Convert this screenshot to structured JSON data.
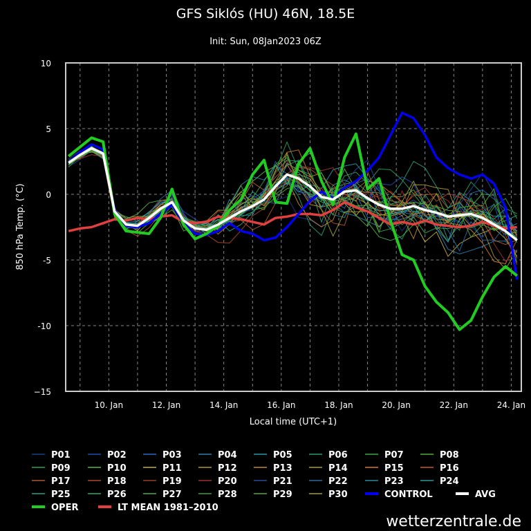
{
  "chart_data": {
    "type": "line",
    "title": "GFS Siklós (HU) 46N, 18.5E",
    "subtitle": "Init: Sun, 08Jan2023 06Z",
    "xlabel": "Local time (UTC+1)",
    "ylabel": "850 hPa Temp. (°C)",
    "credit": "wetterzentrale.de",
    "xlim": [
      8.5,
      24.35
    ],
    "ylim": [
      -15,
      10
    ],
    "grid": true,
    "x_ticks": [
      {
        "x": 10,
        "label": "10. Jan"
      },
      {
        "x": 12,
        "label": "12. Jan"
      },
      {
        "x": 14,
        "label": "14. Jan"
      },
      {
        "x": 16,
        "label": "16. Jan"
      },
      {
        "x": 18,
        "label": "18. Jan"
      },
      {
        "x": 20,
        "label": "20. Jan"
      },
      {
        "x": 22,
        "label": "22. Jan"
      },
      {
        "x": 24,
        "label": "24. Jan"
      }
    ],
    "y_ticks": [
      {
        "y": 10,
        "label": "10"
      },
      {
        "y": 5,
        "label": "5"
      },
      {
        "y": 0,
        "label": "0"
      },
      {
        "y": -5,
        "label": "-5"
      },
      {
        "y": -10,
        "label": "-10"
      },
      {
        "y": -15,
        "label": "−15"
      }
    ],
    "x": [
      8.6,
      9,
      9.4,
      9.8,
      10.2,
      10.6,
      11,
      11.4,
      11.8,
      12.2,
      12.6,
      13,
      13.4,
      13.8,
      14.2,
      14.6,
      15,
      15.4,
      15.8,
      16.2,
      16.6,
      17,
      17.4,
      17.8,
      18.2,
      18.6,
      19,
      19.4,
      19.8,
      20.2,
      20.6,
      21,
      21.4,
      21.8,
      22.2,
      22.6,
      23,
      23.4,
      23.8,
      24.2
    ],
    "series": [
      {
        "name": "CONTROL",
        "role": "control",
        "color": "#0000ee",
        "values": [
          2.4,
          3.2,
          3.8,
          3.4,
          -1.2,
          -2.4,
          -2.5,
          -2.2,
          -1.5,
          -0.8,
          -2.2,
          -3.0,
          -3.1,
          -2.8,
          -2.2,
          -2.8,
          -3.0,
          -3.5,
          -3.3,
          -2.5,
          -1.5,
          -0.5,
          0.2,
          -0.3,
          0.5,
          1.0,
          1.8,
          2.8,
          4.5,
          6.2,
          5.8,
          4.5,
          2.8,
          2.0,
          1.5,
          1.2,
          1.5,
          0.8,
          -1.0,
          -6.5
        ]
      },
      {
        "name": "OPER",
        "role": "oper",
        "color": "#22cc22",
        "values": [
          2.9,
          3.6,
          4.3,
          4.0,
          -1.5,
          -2.8,
          -2.9,
          -3.0,
          -1.8,
          0.4,
          -2.3,
          -3.4,
          -3.0,
          -2.4,
          -1.2,
          -0.4,
          1.5,
          2.6,
          -0.6,
          -0.7,
          2.3,
          3.5,
          1.0,
          -0.8,
          2.8,
          4.6,
          0.4,
          1.2,
          -2.0,
          -4.6,
          -5.0,
          -7.0,
          -8.2,
          -9.0,
          -10.3,
          -9.6,
          -7.8,
          -6.3,
          -5.5,
          -6.2
        ]
      },
      {
        "name": "AVG",
        "role": "avg",
        "color": "#ffffff",
        "values": [
          2.4,
          3.0,
          3.5,
          3.1,
          -1.3,
          -2.3,
          -2.4,
          -1.8,
          -1.1,
          -0.6,
          -2.0,
          -2.6,
          -2.7,
          -2.3,
          -1.8,
          -1.3,
          -0.9,
          -0.4,
          0.6,
          1.5,
          1.2,
          0.6,
          -0.2,
          -0.4,
          0.2,
          0.3,
          -0.3,
          -0.8,
          -1.1,
          -1.1,
          -0.9,
          -1.2,
          -1.4,
          -1.7,
          -1.6,
          -1.5,
          -1.8,
          -2.3,
          -2.8,
          -3.5
        ]
      },
      {
        "name": "LT MEAN 1981-2010",
        "role": "ltmean",
        "color": "#e04040",
        "values": [
          -2.8,
          -2.6,
          -2.5,
          -2.2,
          -1.9,
          -2.0,
          -1.8,
          -1.9,
          -1.7,
          -1.6,
          -2.1,
          -2.2,
          -2.1,
          -1.7,
          -1.8,
          -1.9,
          -2.1,
          -2.3,
          -1.8,
          -1.7,
          -1.5,
          -1.5,
          -1.6,
          -1.2,
          -0.6,
          -1.0,
          -1.3,
          -1.8,
          -2.3,
          -2.1,
          -2.3,
          -2.0,
          -2.3,
          -2.4,
          -2.5,
          -2.4,
          -2.1,
          -2.4,
          -2.6,
          -2.5
        ]
      }
    ]
  },
  "legend": [
    {
      "label": "P01",
      "color": "#1a3d8a",
      "role": "member"
    },
    {
      "label": "P02",
      "color": "#1f4fb3",
      "role": "member"
    },
    {
      "label": "P03",
      "color": "#2a6ac8",
      "role": "member"
    },
    {
      "label": "P04",
      "color": "#2c7fb0",
      "role": "member"
    },
    {
      "label": "P05",
      "color": "#2a9aa8",
      "role": "member"
    },
    {
      "label": "P06",
      "color": "#2aa070",
      "role": "member"
    },
    {
      "label": "P07",
      "color": "#3aa84a",
      "role": "member"
    },
    {
      "label": "P08",
      "color": "#4fb03a",
      "role": "member"
    },
    {
      "label": "P09",
      "color": "#2f9f5a",
      "role": "member"
    },
    {
      "label": "P10",
      "color": "#5db34a",
      "role": "member"
    },
    {
      "label": "P11",
      "color": "#c0b040",
      "role": "member"
    },
    {
      "label": "P12",
      "color": "#b09a3a",
      "role": "member"
    },
    {
      "label": "P13",
      "color": "#c08a35",
      "role": "member"
    },
    {
      "label": "P14",
      "color": "#a7a030",
      "role": "member"
    },
    {
      "label": "P15",
      "color": "#d07a30",
      "role": "member"
    },
    {
      "label": "P16",
      "color": "#c06030",
      "role": "member"
    },
    {
      "label": "P17",
      "color": "#b05a2a",
      "role": "member"
    },
    {
      "label": "P18",
      "color": "#b04a2a",
      "role": "member"
    },
    {
      "label": "P19",
      "color": "#9a3a25",
      "role": "member"
    },
    {
      "label": "P20",
      "color": "#a03030",
      "role": "member"
    },
    {
      "label": "P21",
      "color": "#2a4a9a",
      "role": "member"
    },
    {
      "label": "P22",
      "color": "#2a6aa0",
      "role": "member"
    },
    {
      "label": "P23",
      "color": "#2a8aa0",
      "role": "member"
    },
    {
      "label": "P24",
      "color": "#2a9a9a",
      "role": "member"
    },
    {
      "label": "P25",
      "color": "#2aa080",
      "role": "member"
    },
    {
      "label": "P26",
      "color": "#35a860",
      "role": "member"
    },
    {
      "label": "P27",
      "color": "#48b048",
      "role": "member"
    },
    {
      "label": "P28",
      "color": "#3aa040",
      "role": "member"
    },
    {
      "label": "P29",
      "color": "#5aa838",
      "role": "member"
    },
    {
      "label": "P30",
      "color": "#a0a035",
      "role": "member"
    },
    {
      "label": "CONTROL",
      "color": "#0000ee",
      "role": "control"
    },
    {
      "label": "AVG",
      "color": "#ffffff",
      "role": "avg"
    },
    {
      "label": "OPER",
      "color": "#22cc22",
      "role": "oper"
    },
    {
      "label": "LT MEAN 1981–2010",
      "color": "#e04040",
      "role": "ltmean"
    }
  ]
}
